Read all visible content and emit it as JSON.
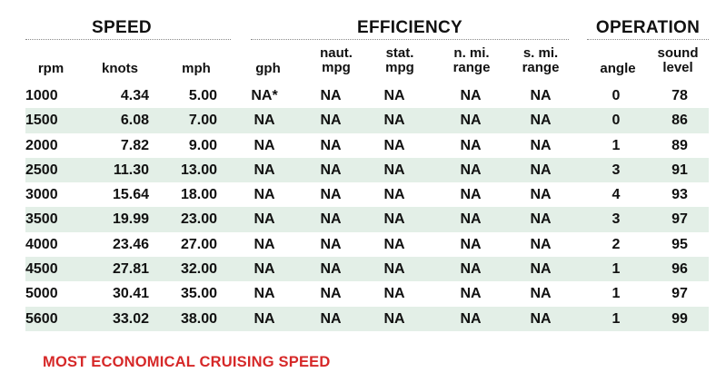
{
  "groups": {
    "speed": "SPEED",
    "efficiency": "EFFICIENCY",
    "operation": "OPERATION"
  },
  "headers": {
    "rpm": [
      "rpm"
    ],
    "knots": [
      "knots"
    ],
    "mph": [
      "mph"
    ],
    "gph": [
      "gph"
    ],
    "naut_mpg": [
      "naut.",
      "mpg"
    ],
    "stat_mpg": [
      "stat.",
      "mpg"
    ],
    "nmi_range": [
      "n. mi.",
      "range"
    ],
    "smi_range": [
      "s. mi.",
      "range"
    ],
    "angle": [
      "angle"
    ],
    "sound": [
      "sound",
      "level"
    ]
  },
  "rows": [
    [
      "1000",
      "4.34",
      "5.00",
      "NA*",
      "NA",
      "NA",
      "NA",
      "NA",
      "0",
      "78"
    ],
    [
      "1500",
      "6.08",
      "7.00",
      "NA",
      "NA",
      "NA",
      "NA",
      "NA",
      "0",
      "86"
    ],
    [
      "2000",
      "7.82",
      "9.00",
      "NA",
      "NA",
      "NA",
      "NA",
      "NA",
      "1",
      "89"
    ],
    [
      "2500",
      "11.30",
      "13.00",
      "NA",
      "NA",
      "NA",
      "NA",
      "NA",
      "3",
      "91"
    ],
    [
      "3000",
      "15.64",
      "18.00",
      "NA",
      "NA",
      "NA",
      "NA",
      "NA",
      "4",
      "93"
    ],
    [
      "3500",
      "19.99",
      "23.00",
      "NA",
      "NA",
      "NA",
      "NA",
      "NA",
      "3",
      "97"
    ],
    [
      "4000",
      "23.46",
      "27.00",
      "NA",
      "NA",
      "NA",
      "NA",
      "NA",
      "2",
      "95"
    ],
    [
      "4500",
      "27.81",
      "32.00",
      "NA",
      "NA",
      "NA",
      "NA",
      "NA",
      "1",
      "96"
    ],
    [
      "5000",
      "30.41",
      "35.00",
      "NA",
      "NA",
      "NA",
      "NA",
      "NA",
      "1",
      "97"
    ],
    [
      "5600",
      "33.02",
      "38.00",
      "NA",
      "NA",
      "NA",
      "NA",
      "NA",
      "1",
      "99"
    ]
  ],
  "footer": "MOST ECONOMICAL CRUISING SPEED",
  "colors": {
    "stripe": "#e3efe7",
    "footer": "#d62828"
  }
}
